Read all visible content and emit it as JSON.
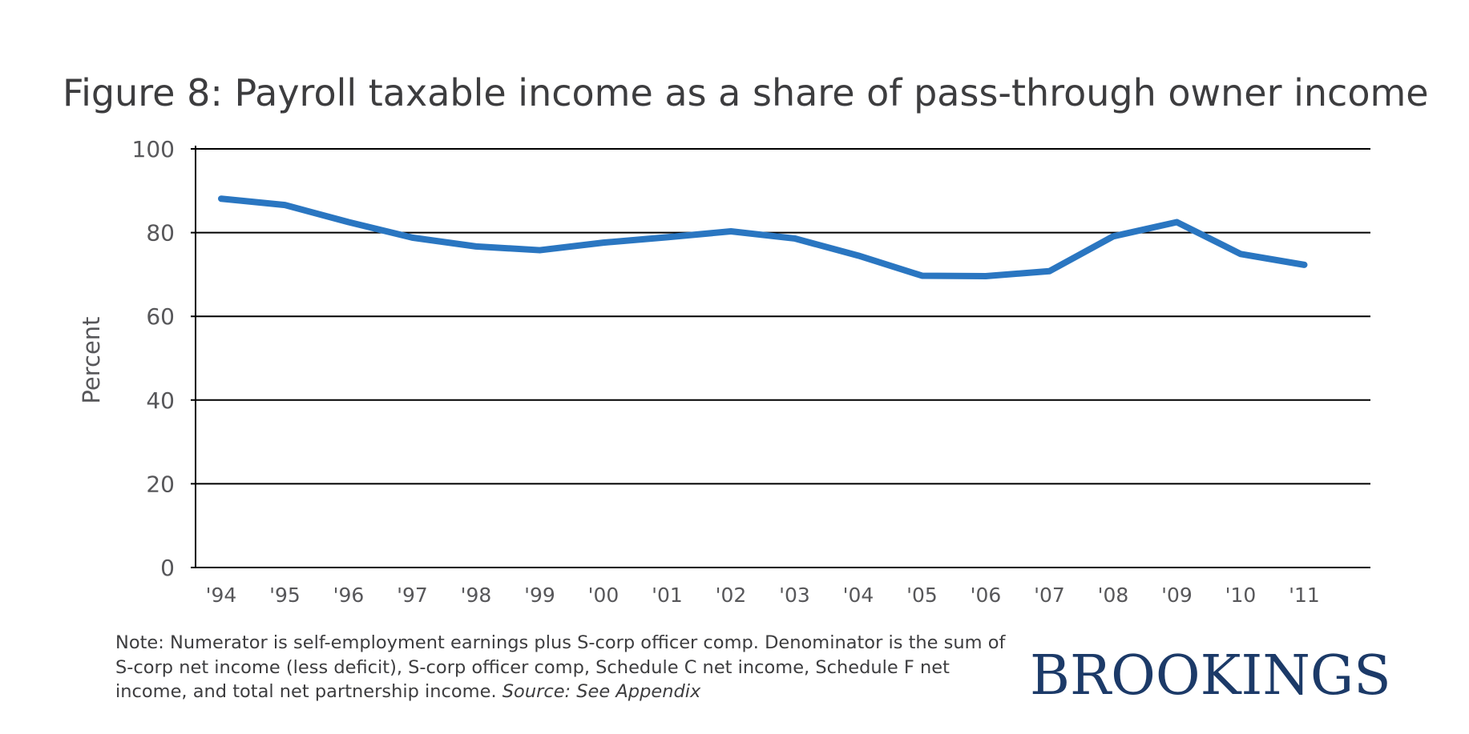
{
  "title": "Figure 8: Payroll taxable income as a share of pass-through owner income",
  "note": {
    "text": "Note: Numerator is self-employment earnings plus S-corp officer comp. Denominator is the sum of S-corp net income (less deficit), S-corp officer comp, Schedule C net income, Schedule F net income, and total net partnership income. ",
    "source": "Source: See Appendix"
  },
  "logo": "BROOKINGS",
  "colors": {
    "line": "#2a76c1",
    "text": "#3d3d3f",
    "logo": "#1c3a68",
    "grid": "#000000"
  },
  "chart_data": {
    "type": "line",
    "title": "Figure 8: Payroll taxable income as a share of pass-through owner income",
    "xlabel": "",
    "ylabel": "Percent",
    "ylim": [
      0,
      100
    ],
    "yticks": [
      0,
      20,
      40,
      60,
      80,
      100
    ],
    "grid": "horizontal",
    "categories": [
      "'94",
      "'95",
      "'96",
      "'97",
      "'98",
      "'99",
      "'00",
      "'01",
      "'02",
      "'03",
      "'04",
      "'05",
      "'06",
      "'07",
      "'08",
      "'09",
      "'10",
      "'11"
    ],
    "series": [
      {
        "values": [
          88.1,
          86.6,
          82.5,
          78.8,
          76.7,
          75.8,
          77.6,
          78.9,
          80.3,
          78.6,
          74.5,
          69.7,
          69.6,
          70.8,
          79.1,
          82.5,
          74.9,
          72.3
        ]
      }
    ]
  }
}
